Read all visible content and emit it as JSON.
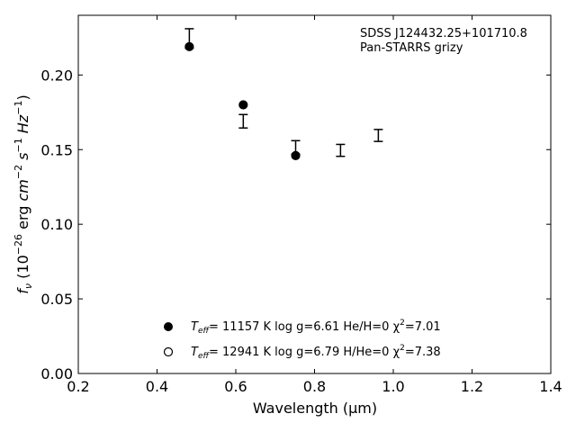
{
  "chart_data": {
    "type": "scatter",
    "title": "",
    "xlabel": "Wavelength (μm)",
    "ylabel": "fν (10⁻²⁶ erg cm⁻² s⁻¹ Hz⁻¹)",
    "xlim": [
      0.2,
      1.4
    ],
    "ylim": [
      0.0,
      0.24
    ],
    "xticks": [
      "0.2",
      "0.4",
      "0.6",
      "0.8",
      "1.0",
      "1.2",
      "1.4"
    ],
    "yticks": [
      "0.00",
      "0.05",
      "0.10",
      "0.15",
      "0.20"
    ],
    "grid": false,
    "annotations": [
      "SDSS J124432.25+101710.8",
      "Pan-STARRS grizy"
    ],
    "observed": {
      "x": [
        0.482,
        0.619,
        0.752,
        0.866,
        0.962
      ],
      "y": [
        0.2245,
        0.169,
        0.1515,
        0.1495,
        0.1595
      ],
      "yerr": [
        0.0065,
        0.0045,
        0.0045,
        0.004,
        0.004
      ]
    },
    "series": [
      {
        "label": "T_eff= 11157 K  log g=6.61  He/H=0  χ²=7.01",
        "marker": "filled-circle",
        "x": [
          0.482,
          0.619,
          0.752
        ],
        "y": [
          0.219,
          0.18,
          0.146
        ]
      },
      {
        "label": "T_eff= 12941 K  log g=6.79  H/He=0  χ²=7.38",
        "marker": "open-circle",
        "x": [],
        "y": []
      }
    ],
    "legend_position": "bottom-center",
    "legend_texts": [
      {
        "rest": "= 11157 K  log g=6.61  He/H=0  χ",
        "chi": "=7.01"
      },
      {
        "rest": "= 12941 K  log g=6.79  H/He=0  χ",
        "chi": "=7.38"
      }
    ],
    "legend_symbol": {
      "T": "T",
      "eff": "eff",
      "sq": "2"
    },
    "ylabel_parts": {
      "f": "f",
      "nu": "ν",
      "open": "(10",
      "exp26": "−26",
      "erg": " erg ",
      "cm": "cm",
      "expm2": "−2",
      "s": " s",
      "expm1": "−1",
      "hz": " Hz",
      "close": ")"
    },
    "colors": {
      "marker": "#000000",
      "axis": "#000000",
      "background": "#ffffff"
    }
  }
}
